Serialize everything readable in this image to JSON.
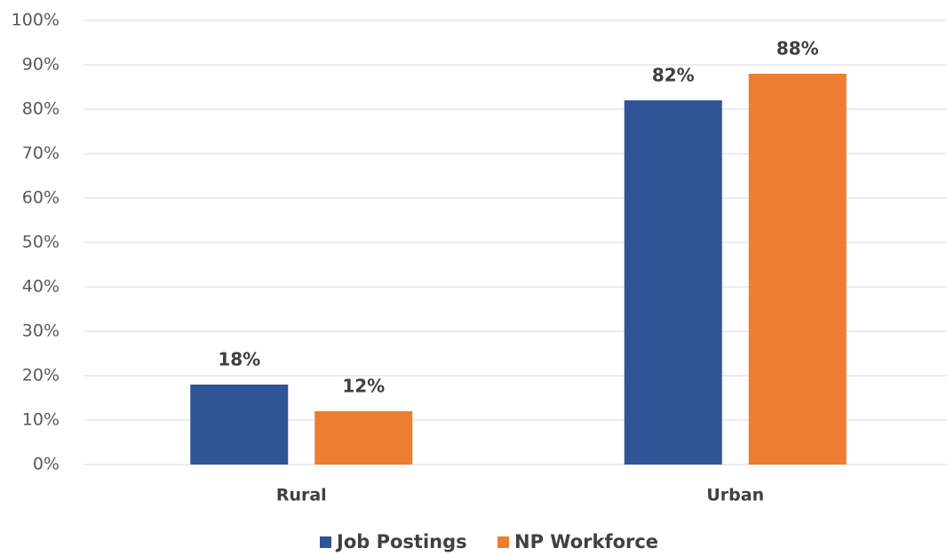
{
  "chart_data": {
    "type": "bar",
    "categories": [
      "Rural",
      "Urban"
    ],
    "series": [
      {
        "name": "Job Postings",
        "color": "#2f5597",
        "values": [
          18,
          82
        ],
        "value_labels": [
          "18%",
          "82%"
        ]
      },
      {
        "name": "NP Workforce",
        "color": "#ed7d31",
        "values": [
          12,
          88
        ],
        "value_labels": [
          "12%",
          "88%"
        ]
      }
    ],
    "ylim": [
      0,
      100
    ],
    "yticks": [
      {
        "value": 0,
        "label": "0%"
      },
      {
        "value": 10,
        "label": "10%"
      },
      {
        "value": 20,
        "label": "20%"
      },
      {
        "value": 30,
        "label": "30%"
      },
      {
        "value": 40,
        "label": "40%"
      },
      {
        "value": 50,
        "label": "50%"
      },
      {
        "value": 60,
        "label": "60%"
      },
      {
        "value": 70,
        "label": "70%"
      },
      {
        "value": 80,
        "label": "80%"
      },
      {
        "value": 90,
        "label": "90%"
      },
      {
        "value": 100,
        "label": "100%"
      }
    ],
    "grid": true,
    "legend": "bottom"
  }
}
